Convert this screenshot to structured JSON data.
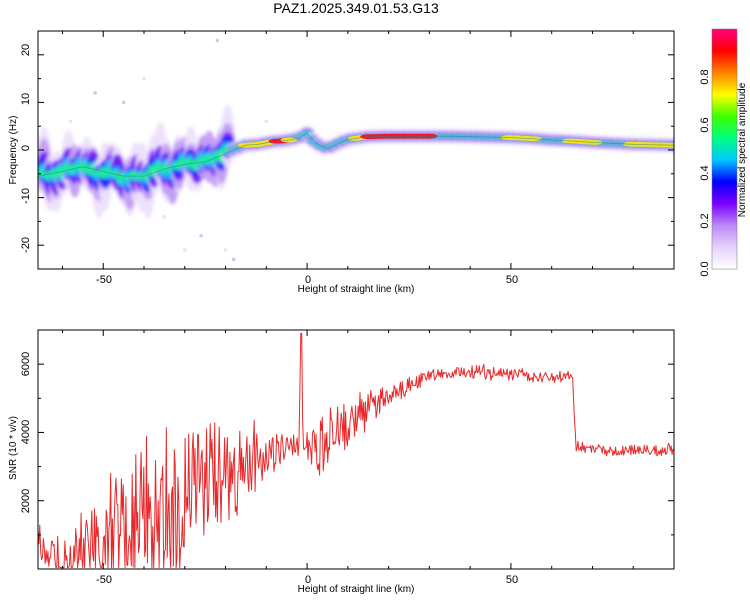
{
  "title": "PAZ1.2025.349.01.53.G13",
  "chart_data": [
    {
      "type": "heatmap",
      "name": "spectrogram",
      "xlabel": "Height of straight line (km)",
      "ylabel": "Frequency (Hz)",
      "xlim": [
        -66,
        90
      ],
      "ylim": [
        -25,
        25
      ],
      "xticks": [
        -50,
        0,
        50
      ],
      "xtick_labels": [
        "-50",
        "0",
        "50"
      ],
      "yticks": [
        -20,
        -10,
        0,
        10,
        20
      ],
      "ytick_labels": [
        "-20",
        "-10",
        "0",
        "10",
        "20"
      ],
      "ridge": {
        "x": [
          -66,
          -60,
          -55,
          -50,
          -45,
          -40,
          -35,
          -30,
          -25,
          -22,
          -18,
          -15,
          -12,
          -8,
          -5,
          -2,
          0,
          2,
          5,
          8,
          10,
          15,
          20,
          25,
          30,
          35,
          40,
          45,
          50,
          55,
          60,
          65,
          70,
          75,
          80,
          85,
          90
        ],
        "y": [
          -5.5,
          -4.5,
          -3.5,
          -4.5,
          -5.5,
          -5.5,
          -4,
          -3,
          -2.5,
          -1.5,
          0,
          1,
          1.2,
          1.8,
          2,
          2.5,
          3.5,
          1.5,
          0.3,
          1.5,
          2.2,
          2.8,
          2.9,
          2.9,
          2.9,
          2.9,
          2.8,
          2.7,
          2.6,
          2.4,
          2.1,
          1.9,
          1.6,
          1.4,
          1.2,
          1.1,
          1.0
        ],
        "peak_amplitude": [
          0.5,
          0.45,
          0.5,
          0.45,
          0.5,
          0.55,
          0.45,
          0.4,
          0.55,
          0.6,
          0.7,
          0.9,
          0.85,
          0.95,
          1.0,
          0.6,
          0.4,
          0.5,
          0.6,
          0.7,
          0.8,
          0.95,
          1.0,
          1.0,
          0.95,
          0.5,
          0.4,
          0.45,
          0.9,
          0.95,
          0.5,
          0.9,
          0.95,
          0.55,
          0.9,
          0.95,
          0.9
        ]
      }
    },
    {
      "type": "colorbar",
      "name": "amplitude-colorbar",
      "label": "Normalized spectral amplitude",
      "range": [
        0,
        1
      ],
      "ticks": [
        0.0,
        0.2,
        0.4,
        0.6,
        0.8
      ],
      "tick_labels": [
        "0.0",
        "0.2",
        "0.4",
        "0.6",
        "0.8"
      ],
      "colors": [
        "#ffffff",
        "#e6d2fa",
        "#bb88f5",
        "#7a00ff",
        "#0000ff",
        "#00c8ff",
        "#00ff80",
        "#40ff00",
        "#ffff00",
        "#ff8000",
        "#ff0000",
        "#ff0080"
      ]
    },
    {
      "type": "line",
      "name": "snr",
      "xlabel": "Height of straight line (km)",
      "ylabel": "SNR (10 * v/v)",
      "xlim": [
        -66,
        90
      ],
      "ylim": [
        0,
        7000
      ],
      "xticks": [
        -50,
        0,
        50
      ],
      "xtick_labels": [
        "-50",
        "0",
        "50"
      ],
      "yticks": [
        2000,
        4000,
        6000
      ],
      "ytick_labels": [
        "2000",
        "4000",
        "6000"
      ],
      "color": "#e8292b",
      "series": [
        {
          "name": "SNR",
          "x": [
            -66,
            -64,
            -62,
            -60,
            -58,
            -56,
            -54,
            -52,
            -50,
            -48,
            -46,
            -44,
            -42,
            -40,
            -38,
            -36,
            -34,
            -32,
            -30,
            -28,
            -26,
            -24,
            -22,
            -20,
            -18,
            -16,
            -14,
            -12,
            -10,
            -8,
            -6,
            -4,
            -2,
            -1.5,
            -1,
            0,
            2,
            4,
            6,
            8,
            10,
            12,
            14,
            16,
            18,
            20,
            22,
            24,
            26,
            28,
            30,
            32,
            34,
            36,
            38,
            40,
            42,
            44,
            46,
            48,
            50,
            52,
            54,
            56,
            58,
            60,
            62,
            64,
            65,
            66,
            67,
            70,
            75,
            80,
            85,
            90
          ],
          "y": [
            700,
            400,
            350,
            300,
            350,
            450,
            500,
            650,
            800,
            900,
            1050,
            1200,
            1400,
            1600,
            1750,
            1900,
            2000,
            2100,
            2250,
            2350,
            2500,
            2650,
            2750,
            2850,
            2950,
            3050,
            3150,
            3250,
            3350,
            3450,
            3550,
            3600,
            3650,
            6900,
            3650,
            3550,
            3450,
            3700,
            3950,
            4150,
            4300,
            4450,
            4600,
            4750,
            4900,
            5050,
            5200,
            5350,
            5450,
            5550,
            5620,
            5680,
            5720,
            5750,
            5760,
            5780,
            5790,
            5760,
            5740,
            5720,
            5700,
            5680,
            5660,
            5640,
            5630,
            5600,
            5600,
            5620,
            5700,
            3600,
            3550,
            3500,
            3450,
            3480,
            3460,
            3500
          ],
          "noise_envelope": [
            650,
            600,
            550,
            600,
            700,
            900,
            1100,
            1300,
            1500,
            1700,
            1800,
            1900,
            2000,
            2000,
            2100,
            2100,
            2100,
            2000,
            1900,
            1700,
            1700,
            1600,
            1500,
            1400,
            1300,
            1200,
            1100,
            900,
            700,
            550,
            450,
            350,
            300,
            0,
            300,
            500,
            700,
            750,
            750,
            700,
            650,
            600,
            550,
            450,
            350,
            300,
            250,
            250,
            220,
            200,
            190,
            180,
            180,
            180,
            180,
            180,
            200,
            200,
            190,
            180,
            170,
            170,
            160,
            160,
            160,
            150,
            150,
            150,
            150,
            160,
            160,
            160,
            160,
            160,
            160,
            160
          ]
        }
      ]
    }
  ]
}
